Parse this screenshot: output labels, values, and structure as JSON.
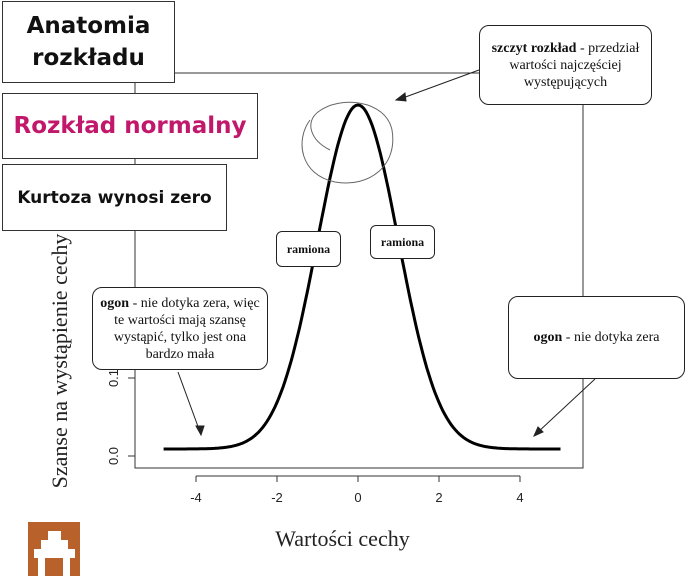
{
  "panels": {
    "title": "Anatomia rozkładu",
    "subtitle": "Rozkład normalny",
    "kurtosis": "Kurtoza wynosi zero"
  },
  "callouts": {
    "peak_bold": "szczyt rozkład",
    "peak_text": " - przedział wartości najczęściej występujących",
    "shoulder_left": "ramiona",
    "shoulder_right": "ramiona",
    "tail_left_bold": "ogon",
    "tail_left_text": " - nie dotyka zera, więc te wartości mają szansę wystąpić, tylko jest ona bardzo mała",
    "tail_right_bold": "ogon",
    "tail_right_text": " - nie dotyka zera"
  },
  "axes": {
    "xlabel": "Wartości cechy",
    "ylabel": "Szanse na wystąpienie cechy",
    "xticks": [
      "-4",
      "-2",
      "0",
      "2",
      "4"
    ],
    "yticks": [
      "0.0",
      "0.1"
    ]
  },
  "chart_data": {
    "type": "line",
    "distribution": "normal",
    "mean": 0,
    "sd": 1,
    "xlim": [
      -4.8,
      5.0
    ],
    "xlabel": "Wartości cechy",
    "ylabel": "Szanse na wystąpienie cechy"
  },
  "colors": {
    "accent": "#c2186b",
    "logo": "#b8612a",
    "line": "#000000"
  },
  "icons": {
    "logo": "logo-icon"
  }
}
